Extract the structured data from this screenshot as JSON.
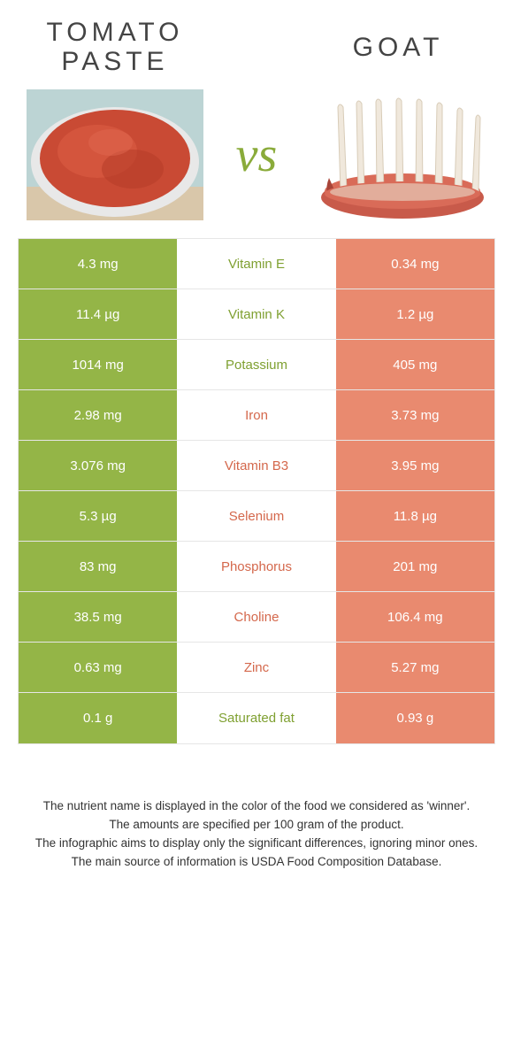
{
  "colors": {
    "green": "#94b547",
    "coral": "#e98a6f",
    "green_text": "#7fa031",
    "coral_text": "#d4684c",
    "border": "#e6e6e6",
    "white": "#ffffff"
  },
  "left": {
    "title_l1": "TOMATO",
    "title_l2": "PASTE"
  },
  "right": {
    "title": "GOAT"
  },
  "vs": "vs",
  "rows": [
    {
      "left": "4.3 mg",
      "mid": "Vitamin E",
      "right": "0.34 mg",
      "winner": "left"
    },
    {
      "left": "11.4 µg",
      "mid": "Vitamin K",
      "right": "1.2 µg",
      "winner": "left"
    },
    {
      "left": "1014 mg",
      "mid": "Potassium",
      "right": "405 mg",
      "winner": "left"
    },
    {
      "left": "2.98 mg",
      "mid": "Iron",
      "right": "3.73 mg",
      "winner": "right"
    },
    {
      "left": "3.076 mg",
      "mid": "Vitamin B3",
      "right": "3.95 mg",
      "winner": "right"
    },
    {
      "left": "5.3 µg",
      "mid": "Selenium",
      "right": "11.8 µg",
      "winner": "right"
    },
    {
      "left": "83 mg",
      "mid": "Phosphorus",
      "right": "201 mg",
      "winner": "right"
    },
    {
      "left": "38.5 mg",
      "mid": "Choline",
      "right": "106.4 mg",
      "winner": "right"
    },
    {
      "left": "0.63 mg",
      "mid": "Zinc",
      "right": "5.27 mg",
      "winner": "right"
    },
    {
      "left": "0.1 g",
      "mid": "Saturated fat",
      "right": "0.93 g",
      "winner": "left"
    }
  ],
  "footer": {
    "l1": "The nutrient name is displayed in the color of the food we considered as 'winner'.",
    "l2": "The amounts are specified per 100 gram of the product.",
    "l3": "The infographic aims to display only the significant differences, ignoring minor ones.",
    "l4": "The main source of information is USDA Food Composition Database."
  }
}
